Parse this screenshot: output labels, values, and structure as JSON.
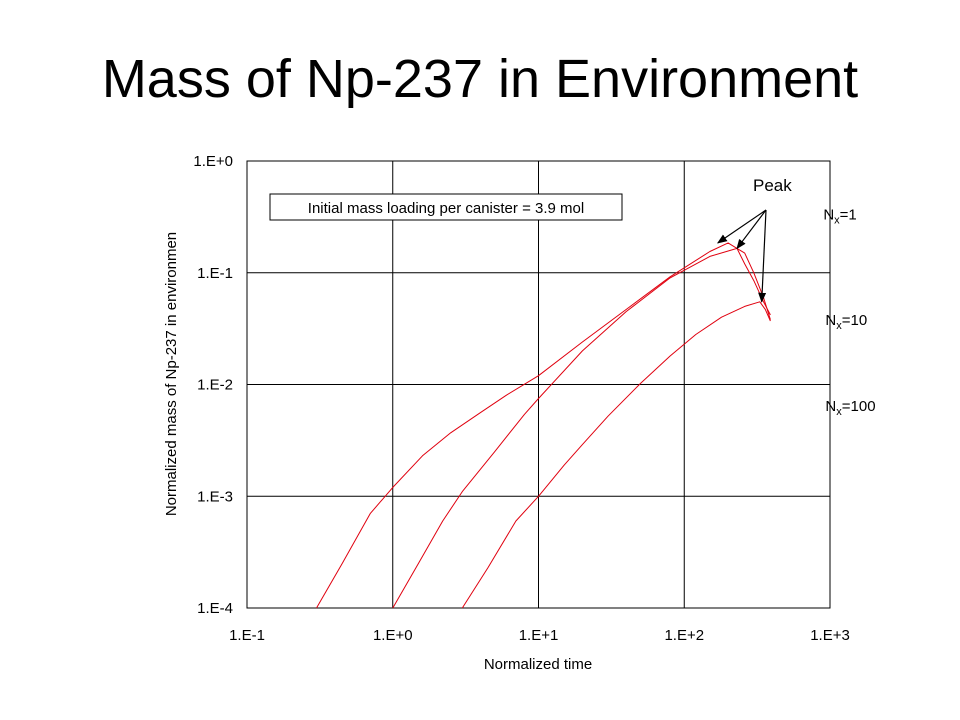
{
  "slide": {
    "title": "Mass of Np-237 in Environment"
  },
  "chart_data": {
    "type": "line",
    "xlabel": "Normalized time",
    "ylabel": "Normalized mass of Np-237 in environmen",
    "xscale": "log",
    "yscale": "log",
    "xlim": [
      0.1,
      1000
    ],
    "ylim": [
      0.0001,
      1
    ],
    "grid": true,
    "x_tick_labels": [
      "1.E-1",
      "1.E+0",
      "1.E+1",
      "1.E+2",
      "1.E+3"
    ],
    "y_tick_labels": [
      "1.E-4",
      "1.E-3",
      "1.E-2",
      "1.E-1",
      "1.E+0"
    ],
    "x_ticks": [
      0.1,
      1,
      10,
      100,
      1000
    ],
    "y_ticks": [
      0.0001,
      0.001,
      0.01,
      0.1,
      1
    ],
    "line_color": "#e0000f",
    "annotation_box": "Initial mass loading per canister = 3.9 mol",
    "peak_label": "Peak",
    "series": [
      {
        "label_main": "N",
        "label_sub": "x",
        "label_rest": "=1",
        "x": [
          0.3,
          0.45,
          0.7,
          1.0,
          1.6,
          2.5,
          4,
          6,
          10,
          20,
          40,
          80,
          150,
          200,
          230,
          260,
          300,
          350,
          390
        ],
        "y": [
          0.0001,
          0.00025,
          0.0007,
          0.0012,
          0.0023,
          0.0037,
          0.0056,
          0.008,
          0.012,
          0.024,
          0.047,
          0.092,
          0.155,
          0.185,
          0.165,
          0.12,
          0.085,
          0.055,
          0.042
        ]
      },
      {
        "label_main": "N",
        "label_sub": "x",
        "label_rest": "=10",
        "x": [
          1.0,
          1.5,
          2.2,
          3,
          5,
          8,
          10,
          20,
          40,
          80,
          150,
          230,
          260,
          300,
          350,
          390
        ],
        "y": [
          0.0001,
          0.00025,
          0.0006,
          0.0011,
          0.0025,
          0.0054,
          0.0075,
          0.02,
          0.045,
          0.09,
          0.14,
          0.165,
          0.15,
          0.1,
          0.06,
          0.038
        ]
      },
      {
        "label_main": "N",
        "label_sub": "x",
        "label_rest": "=100",
        "x": [
          3.0,
          4.5,
          7,
          10,
          15,
          20,
          30,
          50,
          80,
          120,
          180,
          260,
          330,
          360,
          390
        ],
        "y": [
          0.0001,
          0.00023,
          0.0006,
          0.001,
          0.0019,
          0.0029,
          0.0052,
          0.0102,
          0.018,
          0.028,
          0.04,
          0.05,
          0.055,
          0.047,
          0.037
        ]
      }
    ]
  }
}
